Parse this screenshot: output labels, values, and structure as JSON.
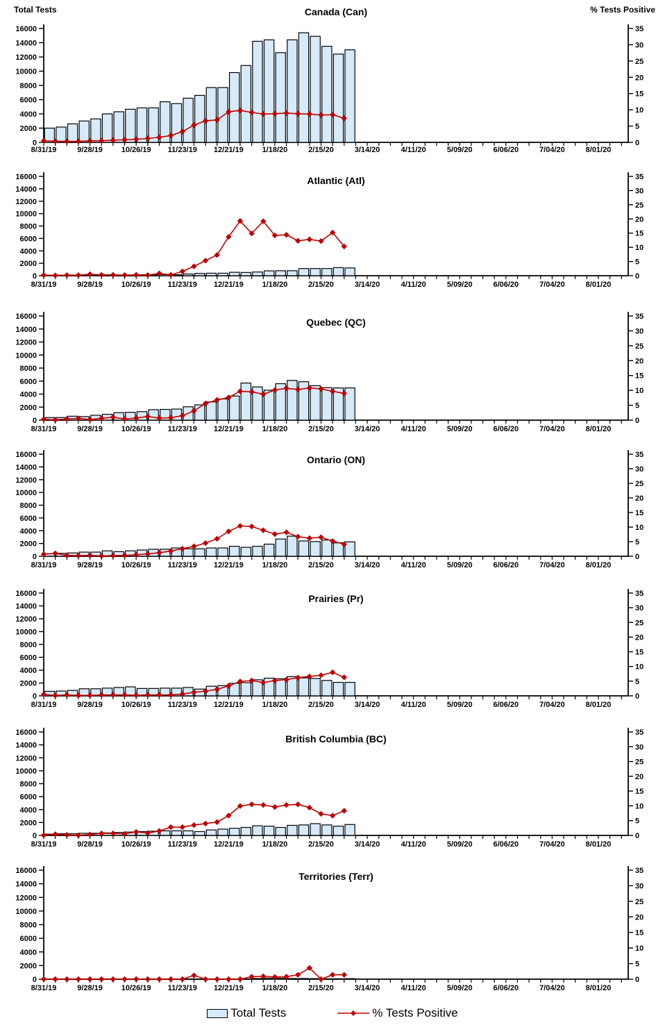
{
  "page": {
    "background": "#FFFFFF"
  },
  "axes": {
    "left_label": "Total Tests",
    "right_label": "% Tests Positive",
    "left_range": [
      0,
      16000
    ],
    "left_ticks": [
      0,
      2000,
      4000,
      6000,
      8000,
      10000,
      12000,
      14000,
      16000
    ],
    "right_range": [
      0,
      35
    ],
    "right_ticks": [
      0,
      5,
      10,
      15,
      20,
      25,
      30,
      35
    ],
    "x_tick_labels": [
      "8/31/19",
      "9/28/19",
      "10/26/19",
      "11/23/19",
      "12/21/19",
      "1/18/20",
      "2/15/20",
      "3/14/20",
      "4/11/20",
      "5/09/20",
      "6/06/20",
      "7/04/20",
      "8/01/20"
    ],
    "grid": "off"
  },
  "legend": {
    "position": "bottom-center",
    "total_tests_label": "Total Tests",
    "pct_positive_label": "% Tests Positive"
  },
  "colors": {
    "bar_fill": "#D6EAF9",
    "bar_border": "#000000",
    "line": "#C00000",
    "text": "#000000"
  },
  "chart_data": {
    "type": "bar",
    "subtype": "bar+line dual-axis, 7 stacked panels",
    "ylabel_left": "Total Tests",
    "ylabel_right": "% Tests Positive",
    "ylim_left": [
      0,
      16000
    ],
    "ylim_right": [
      0,
      35
    ],
    "categories": [
      "8/31/19",
      "9/7/19",
      "9/14/19",
      "9/21/19",
      "9/28/19",
      "10/5/19",
      "10/12/19",
      "10/19/19",
      "10/26/19",
      "11/2/19",
      "11/9/19",
      "11/16/19",
      "11/23/19",
      "11/30/19",
      "12/7/19",
      "12/14/19",
      "12/21/19",
      "12/28/19",
      "1/4/20",
      "1/11/20",
      "1/18/20",
      "1/25/20",
      "2/1/20",
      "2/8/20",
      "2/15/20",
      "2/22/20",
      "2/29/20"
    ],
    "panels": [
      {
        "title": "Canada (Can)",
        "total_tests": [
          2000,
          2150,
          2600,
          3000,
          3300,
          4000,
          4300,
          4650,
          4850,
          4850,
          5700,
          5450,
          6200,
          6600,
          7700,
          7700,
          9800,
          10800,
          14200,
          14400,
          12600,
          14400,
          15400,
          14900,
          13500,
          12400,
          13000
        ],
        "pct_positive": [
          0.5,
          0.35,
          0.3,
          0.3,
          0.45,
          0.5,
          0.65,
          0.8,
          0.95,
          1.2,
          1.55,
          2.1,
          3.3,
          5.3,
          6.6,
          6.9,
          9.4,
          9.8,
          9.2,
          8.7,
          8.8,
          9.0,
          8.8,
          8.7,
          8.4,
          8.5,
          7.4
        ]
      },
      {
        "title": "Atlantic (Atl)",
        "total_tests": [
          80,
          80,
          100,
          100,
          120,
          100,
          100,
          100,
          150,
          150,
          200,
          150,
          280,
          380,
          400,
          400,
          550,
          520,
          600,
          780,
          800,
          800,
          1150,
          1150,
          1150,
          1300,
          1250
        ],
        "pct_positive": [
          0.2,
          0.1,
          0.2,
          0.2,
          0.5,
          0.3,
          0.3,
          0.2,
          0.3,
          0.2,
          0.8,
          0.3,
          1.5,
          3.3,
          5.3,
          7.3,
          13.7,
          19.3,
          14.9,
          19.2,
          14.2,
          14.4,
          12.3,
          12.8,
          12.2,
          15.2,
          10.3
        ]
      },
      {
        "title": "Quebec (QC)",
        "total_tests": [
          400,
          400,
          600,
          550,
          750,
          900,
          1150,
          1200,
          1300,
          1600,
          1650,
          1700,
          2050,
          2350,
          2800,
          3250,
          3700,
          5700,
          5100,
          4600,
          5600,
          6100,
          5900,
          5300,
          5000,
          4950,
          4950
        ],
        "pct_positive": [
          0.3,
          0.1,
          0.4,
          0.6,
          0.2,
          0.6,
          1.0,
          0.4,
          0.7,
          1.2,
          0.7,
          0.8,
          1.5,
          3.1,
          5.6,
          6.8,
          7.6,
          9.7,
          9.5,
          8.7,
          10.1,
          10.7,
          10.3,
          10.8,
          10.5,
          9.7,
          9.0
        ]
      },
      {
        "title": "Ontario (ON)",
        "total_tests": [
          400,
          460,
          520,
          650,
          650,
          850,
          720,
          850,
          980,
          1100,
          1100,
          1300,
          1170,
          1170,
          1300,
          1300,
          1560,
          1400,
          1560,
          1900,
          2700,
          3150,
          2400,
          2300,
          2550,
          2100,
          2250
        ],
        "pct_positive": [
          0.7,
          1.0,
          0.3,
          0.2,
          0.3,
          0.1,
          0.2,
          0.3,
          0.5,
          0.8,
          1.2,
          1.8,
          2.6,
          3.4,
          4.5,
          6.0,
          8.5,
          10.4,
          10.2,
          8.9,
          7.6,
          8.2,
          6.7,
          6.2,
          6.5,
          5.2,
          4.1
        ]
      },
      {
        "title": "Prairies (Pr)",
        "total_tests": [
          700,
          750,
          850,
          1100,
          1100,
          1200,
          1300,
          1400,
          1150,
          1150,
          1200,
          1200,
          1300,
          1050,
          1500,
          1600,
          1950,
          2050,
          2500,
          2750,
          2650,
          3000,
          2800,
          2700,
          2400,
          2100,
          2100
        ],
        "pct_positive": [
          0.5,
          0.15,
          0.3,
          0.15,
          0.15,
          0.3,
          0.3,
          0.3,
          0.2,
          0.3,
          0.3,
          0.3,
          0.6,
          1.2,
          1.6,
          2.2,
          3.4,
          4.9,
          5.2,
          4.5,
          5.2,
          5.5,
          6.2,
          6.6,
          7.0,
          8.0,
          6.3
        ]
      },
      {
        "title": "British Columbia (BC)",
        "total_tests": [
          200,
          260,
          260,
          330,
          330,
          390,
          460,
          520,
          590,
          650,
          715,
          715,
          715,
          590,
          845,
          975,
          1105,
          1235,
          1495,
          1430,
          1235,
          1560,
          1625,
          1820,
          1625,
          1430,
          1690
        ],
        "pct_positive": [
          0.05,
          0.4,
          0.2,
          0.05,
          0.3,
          0.7,
          0.7,
          0.5,
          1.2,
          0.8,
          1.5,
          2.8,
          2.8,
          3.5,
          4.0,
          4.5,
          6.7,
          9.95,
          10.5,
          10.3,
          9.6,
          10.3,
          10.5,
          9.4,
          7.3,
          6.7,
          8.35
        ]
      },
      {
        "title": "Territories (Terr)",
        "total_tests": [
          20,
          20,
          20,
          20,
          20,
          20,
          20,
          20,
          20,
          20,
          20,
          20,
          30,
          30,
          30,
          30,
          30,
          40,
          100,
          150,
          150,
          100,
          100,
          80,
          60,
          60,
          80
        ],
        "pct_positive": [
          0,
          0,
          0,
          0,
          0,
          0,
          0,
          0,
          0,
          0,
          0,
          0,
          0,
          1.2,
          0,
          0,
          0,
          0,
          0.8,
          0.9,
          0.7,
          0.8,
          1.4,
          3.6,
          0,
          1.4,
          1.4
        ]
      }
    ]
  }
}
